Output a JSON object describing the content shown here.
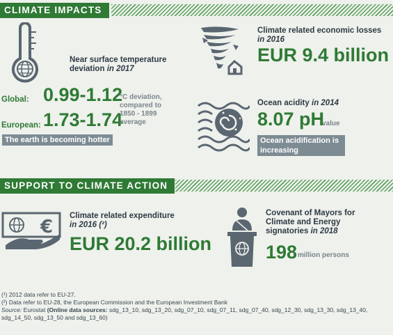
{
  "impacts": {
    "header": "CLIMATE IMPACTS",
    "temperature": {
      "label_main": "Near surface temperature deviation",
      "label_year": "in 2017",
      "global_label": "Global:",
      "global_value": "0.99-1.12",
      "european_label": "European:",
      "european_value": "1.73-1.74",
      "unit_note": "°C deviation, compared to 1850 - 1899 average",
      "banner": "The earth is becoming hotter"
    },
    "losses": {
      "label_main": "Climate related economic losses",
      "label_year": "in 2016",
      "value": "EUR 9.4 billion"
    },
    "ocean": {
      "label_main": "Ocean acidity",
      "label_year": "in 2014",
      "value": "8.07 pH",
      "unit": "value",
      "banner": "Ocean acidification is increasing"
    }
  },
  "support": {
    "header": "SUPPORT TO CLIMATE ACTION",
    "expenditure": {
      "label_main": "Climate related expenditure",
      "label_year": "in 2016 (²)",
      "value": "EUR 20.2 billion"
    },
    "covenant": {
      "label_main": "Covenant of Mayors for Climate and Energy signatories",
      "label_year": "in 2018",
      "value": "198",
      "unit": "million persons"
    }
  },
  "footnotes": {
    "note1_mark": "(¹)",
    "note1": "2012 data refer to EU-27.",
    "note2_mark": "(²)",
    "note2": "Data refer to EU-28, the European Commission and the European Investment Bank",
    "source_prefix": "Source:",
    "source_org": "Eurostat",
    "source_open": "(Online data sources:",
    "source_codes_1": "sdg_13_10, sdg_13_20, sdg_07_10, sdg_07_11, sdg_07_40, sdg_12_30, sdg_13_30, sdg_13_40,",
    "source_codes_2": "sdg_14_50, sdg_13_50 and sdg_13_60)"
  },
  "colors": {
    "green": "#2f7a35",
    "grey_banner": "#7d8b93",
    "icon": "#5a6670",
    "background": "#eef1ec"
  },
  "icons": [
    "thermometer-icon",
    "tornado-icon",
    "ocean-wave-icon",
    "money-hand-icon",
    "podium-speaker-icon"
  ]
}
